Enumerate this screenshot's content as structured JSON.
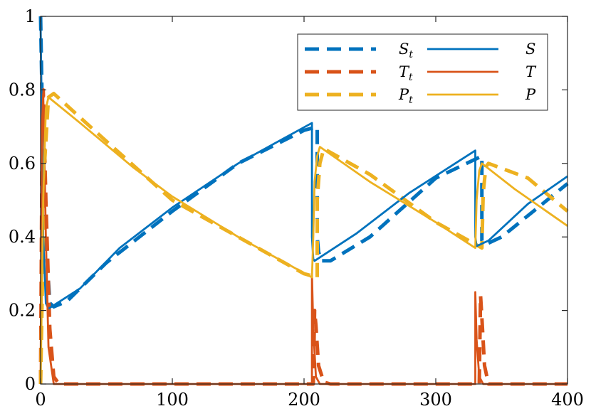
{
  "chart_data": {
    "type": "line",
    "title": "",
    "xlabel": "",
    "ylabel": "",
    "xlim": [
      0,
      400
    ],
    "ylim": [
      0,
      1
    ],
    "x_ticks": [
      0,
      100,
      200,
      300,
      400
    ],
    "x_tick_labels": [
      "0",
      "100",
      "200",
      "300",
      "400"
    ],
    "y_ticks": [
      0,
      0.2,
      0.4,
      0.6,
      0.8,
      1
    ],
    "y_tick_labels": [
      "0",
      "0.2",
      "0.4",
      "0.6",
      "0.8",
      "1"
    ],
    "grid": false,
    "legend": {
      "placement": "top-right",
      "columns": 2
    },
    "series": [
      {
        "name": "S_t",
        "label_main": "S",
        "label_sub": "t",
        "style": "dashed",
        "color": "#0072BD",
        "points": [
          [
            0,
            1
          ],
          [
            1,
            0.8
          ],
          [
            3,
            0.45
          ],
          [
            7,
            0.22
          ],
          [
            10,
            0.21
          ],
          [
            20,
            0.225
          ],
          [
            50,
            0.33
          ],
          [
            100,
            0.47
          ],
          [
            150,
            0.6
          ],
          [
            200,
            0.69
          ],
          [
            210,
            0.7
          ],
          [
            210,
            0.4
          ],
          [
            211,
            0.36
          ],
          [
            213,
            0.335
          ],
          [
            220,
            0.335
          ],
          [
            250,
            0.4
          ],
          [
            300,
            0.56
          ],
          [
            335,
            0.62
          ],
          [
            335,
            0.39
          ],
          [
            338,
            0.38
          ],
          [
            350,
            0.4
          ],
          [
            400,
            0.545
          ]
        ]
      },
      {
        "name": "T_t",
        "label_main": "T",
        "label_sub": "t",
        "style": "dashed",
        "color": "#D95319",
        "points": [
          [
            0,
            0
          ],
          [
            1,
            0.6
          ],
          [
            2,
            0.8
          ],
          [
            4,
            0.5
          ],
          [
            7,
            0.15
          ],
          [
            10,
            0.02
          ],
          [
            14,
            0
          ],
          [
            200,
            0
          ],
          [
            207,
            0
          ],
          [
            208,
            0.2
          ],
          [
            209,
            0.16
          ],
          [
            211,
            0.05
          ],
          [
            215,
            0.005
          ],
          [
            220,
            0
          ],
          [
            330,
            0
          ],
          [
            333,
            0
          ],
          [
            334,
            0.24
          ],
          [
            335,
            0.18
          ],
          [
            337,
            0.05
          ],
          [
            340,
            0
          ],
          [
            400,
            0
          ]
        ]
      },
      {
        "name": "P_t",
        "label_main": "P",
        "label_sub": "t",
        "style": "dashed",
        "color": "#EDB120",
        "points": [
          [
            0,
            0
          ],
          [
            1,
            0.2
          ],
          [
            3,
            0.6
          ],
          [
            6,
            0.78
          ],
          [
            10,
            0.79
          ],
          [
            50,
            0.66
          ],
          [
            100,
            0.5
          ],
          [
            150,
            0.4
          ],
          [
            200,
            0.3
          ],
          [
            210,
            0.29
          ],
          [
            210,
            0.5
          ],
          [
            212,
            0.6
          ],
          [
            215,
            0.64
          ],
          [
            250,
            0.57
          ],
          [
            300,
            0.44
          ],
          [
            335,
            0.37
          ],
          [
            336,
            0.52
          ],
          [
            338,
            0.59
          ],
          [
            340,
            0.6
          ],
          [
            370,
            0.56
          ],
          [
            400,
            0.47
          ]
        ]
      },
      {
        "name": "S",
        "label_main": "S",
        "label_sub": "",
        "style": "solid",
        "color": "#0072BD",
        "points": [
          [
            0,
            0.98
          ],
          [
            1,
            0.7
          ],
          [
            2,
            0.4
          ],
          [
            4,
            0.22
          ],
          [
            6,
            0.205
          ],
          [
            30,
            0.26
          ],
          [
            60,
            0.37
          ],
          [
            100,
            0.48
          ],
          [
            150,
            0.6
          ],
          [
            206,
            0.71
          ],
          [
            206,
            0.62
          ],
          [
            206,
            0.4
          ],
          [
            207,
            0.34
          ],
          [
            208,
            0.335
          ],
          [
            240,
            0.41
          ],
          [
            280,
            0.52
          ],
          [
            330,
            0.635
          ],
          [
            330,
            0.5
          ],
          [
            330,
            0.4
          ],
          [
            331,
            0.375
          ],
          [
            340,
            0.39
          ],
          [
            370,
            0.49
          ],
          [
            400,
            0.565
          ]
        ]
      },
      {
        "name": "T",
        "label_main": "T",
        "label_sub": "",
        "style": "solid",
        "color": "#D95319",
        "points": [
          [
            0,
            0
          ],
          [
            1,
            0.7
          ],
          [
            2,
            0.79
          ],
          [
            4,
            0.4
          ],
          [
            6,
            0.1
          ],
          [
            10,
            0
          ],
          [
            206,
            0
          ],
          [
            206,
            0.3
          ],
          [
            207,
            0.15
          ],
          [
            209,
            0.02
          ],
          [
            212,
            0
          ],
          [
            330,
            0
          ],
          [
            330,
            0.25
          ],
          [
            331,
            0.12
          ],
          [
            333,
            0.02
          ],
          [
            336,
            0
          ],
          [
            400,
            0
          ]
        ]
      },
      {
        "name": "P",
        "label_main": "P",
        "label_sub": "",
        "style": "solid",
        "color": "#EDB120",
        "points": [
          [
            0,
            0
          ],
          [
            2,
            0.5
          ],
          [
            4,
            0.75
          ],
          [
            6,
            0.78
          ],
          [
            30,
            0.71
          ],
          [
            70,
            0.59
          ],
          [
            100,
            0.51
          ],
          [
            150,
            0.4
          ],
          [
            206,
            0.29
          ],
          [
            207,
            0.4
          ],
          [
            208,
            0.55
          ],
          [
            210,
            0.62
          ],
          [
            212,
            0.645
          ],
          [
            250,
            0.55
          ],
          [
            300,
            0.44
          ],
          [
            330,
            0.37
          ],
          [
            331,
            0.5
          ],
          [
            333,
            0.58
          ],
          [
            335,
            0.6
          ],
          [
            360,
            0.53
          ],
          [
            400,
            0.43
          ]
        ]
      }
    ]
  }
}
